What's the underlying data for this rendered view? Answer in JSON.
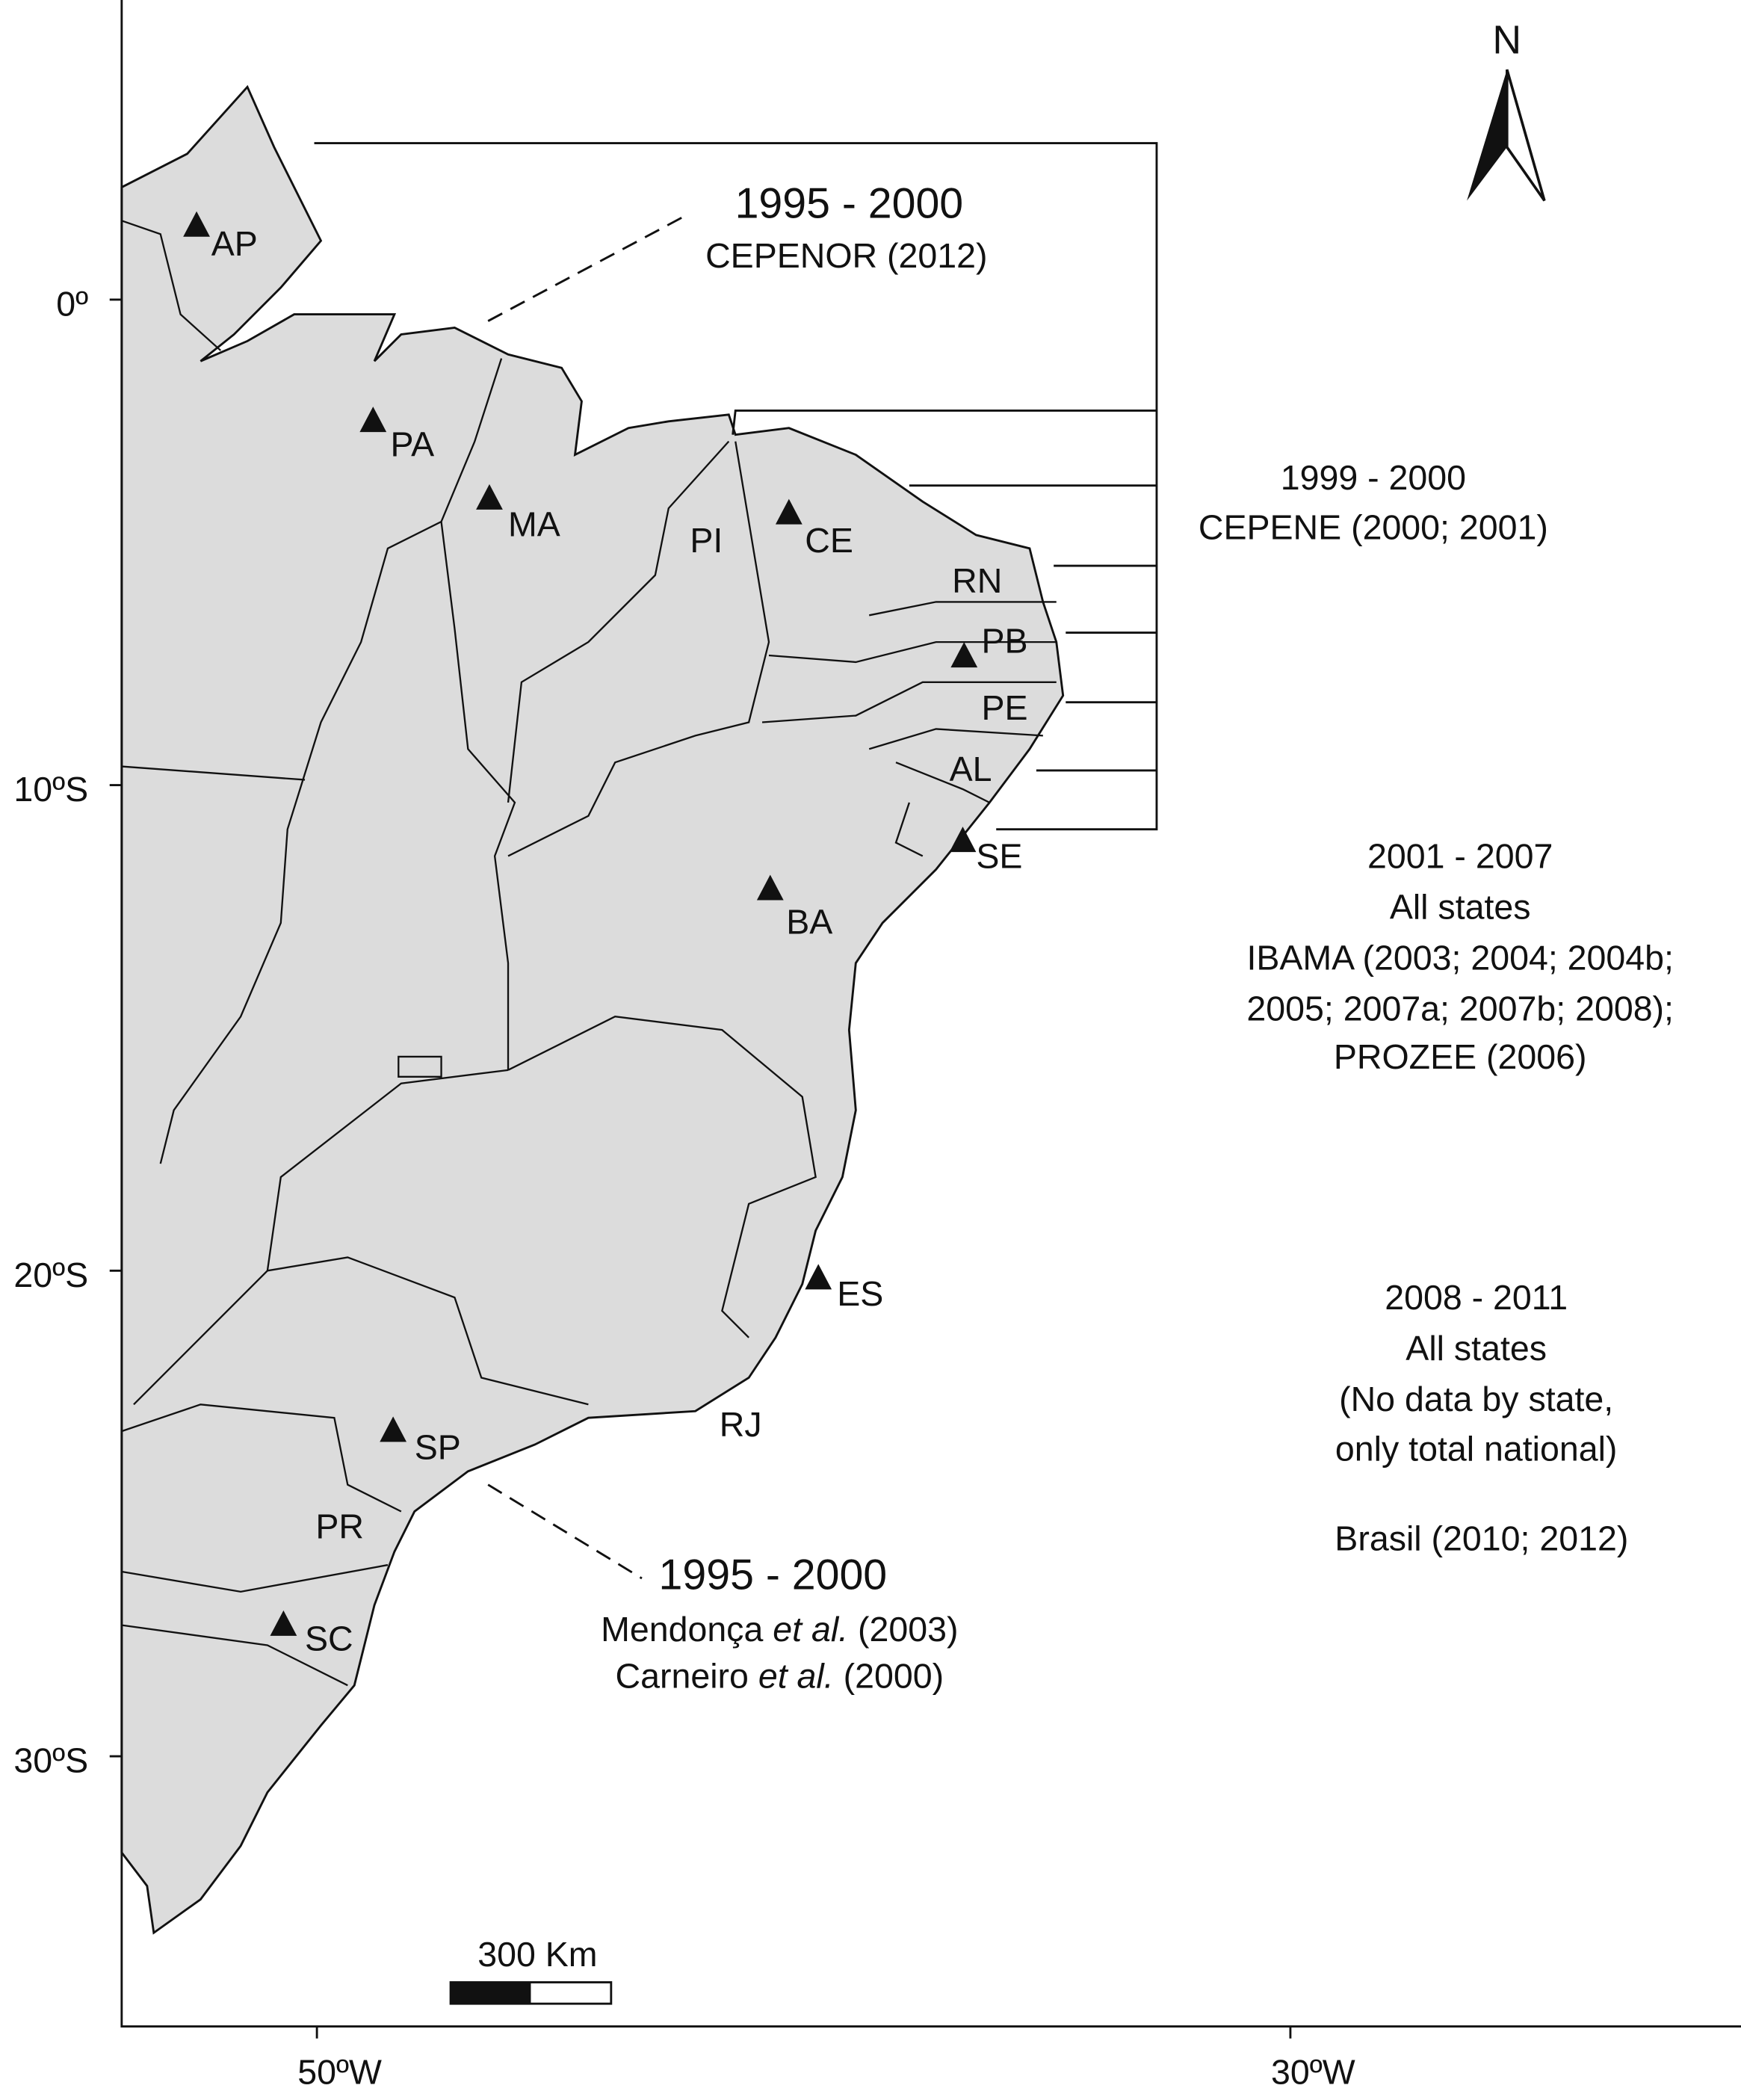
{
  "axes": {
    "y_ticks": [
      "0º",
      "10ºS",
      "20ºS",
      "30ºS"
    ],
    "x_ticks": [
      "50ºW",
      "30ºW"
    ]
  },
  "north": "N",
  "scale_bar": "300 Km",
  "states": [
    "AP",
    "PA",
    "MA",
    "PI",
    "CE",
    "RN",
    "PB",
    "PE",
    "AL",
    "SE",
    "BA",
    "ES",
    "RJ",
    "SP",
    "PR",
    "SC"
  ],
  "annotations": {
    "cepenor": {
      "period": "1995 - 2000",
      "source": "CEPENOR (2012)"
    },
    "cepene": {
      "period": "1999 - 2000",
      "source": "CEPENE (2000; 2001)"
    },
    "all_2001": {
      "period": "2001 - 2007",
      "scope": "All states",
      "sources": [
        "IBAMA (2003; 2004; 2004b;",
        "2005; 2007a; 2007b; 2008);",
        "PROZEE (2006)"
      ]
    },
    "all_2008": {
      "period": "2008 - 2011",
      "scope": "All states",
      "note": [
        "(No data by state,",
        "only total national)"
      ],
      "source": "Brasil (2010; 2012)"
    },
    "south": {
      "period": "1995 - 2000",
      "refs": [
        {
          "author": "Mendonça",
          "etal": "et al.",
          "year": "(2003)"
        },
        {
          "author": "Carneiro",
          "etal": "et al.",
          "year": "(2000)"
        }
      ]
    }
  }
}
